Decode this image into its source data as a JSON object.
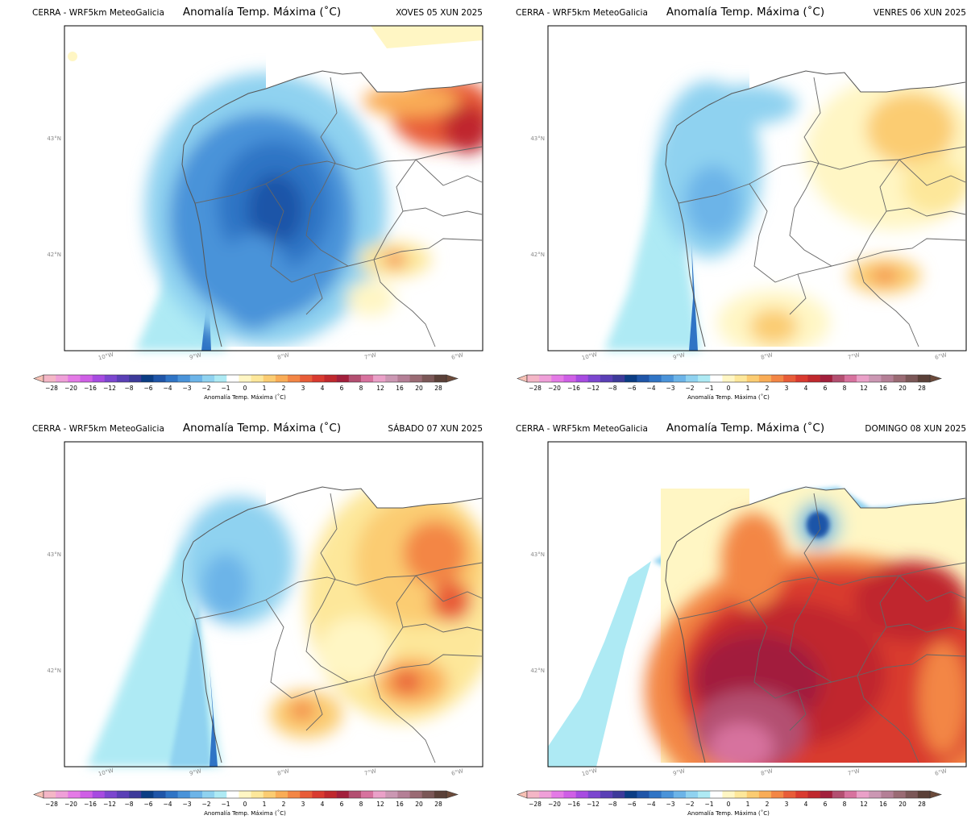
{
  "product_source": "CERRA - WRF5km MeteoGalicia",
  "variable_title": "Anomalía Temp. Máxima (˚C)",
  "colorbar_label": "Anomalía Temp. Máxima (˚C)",
  "axes": {
    "lon_ticks": [
      "10°W",
      "9°W",
      "8°W",
      "7°W",
      "6°W"
    ],
    "lat_ticks": [
      "43°N",
      "42°N"
    ]
  },
  "colorbar": {
    "tick_labels": [
      "−28",
      "−20",
      "−16",
      "−12",
      "−8",
      "−6",
      "−4",
      "−3",
      "−2",
      "−1",
      "0",
      "1",
      "2",
      "3",
      "4",
      "6",
      "8",
      "12",
      "16",
      "20",
      "28"
    ],
    "colors": [
      "#f4b6c6",
      "#ef9fd8",
      "#e47ae6",
      "#cf5fe6",
      "#a74be1",
      "#7c46cf",
      "#5a3fb6",
      "#3d3a9a",
      "#0b3d84",
      "#1f55a8",
      "#2f74c5",
      "#4a93d9",
      "#6cb4e8",
      "#8fd2f0",
      "#aeeaf4",
      "#ffffff",
      "#fff6c4",
      "#fde79a",
      "#fbcc72",
      "#f9ac56",
      "#f38645",
      "#e85c38",
      "#d93a2f",
      "#c0282d",
      "#a21f3c",
      "#b34f71",
      "#d7729e",
      "#eaa0c8",
      "#cb97b3",
      "#b47f96",
      "#9a6b74",
      "#7b5757",
      "#5a4038"
    ],
    "extend_min_color": "#f7c1b5",
    "extend_max_color": "#6b4a3a"
  },
  "panels": [
    {
      "date": "XOVES 05 XUN 2025"
    },
    {
      "date": "VENRES 06 XUN 2025"
    },
    {
      "date": "SÁBADO 07 XUN 2025"
    },
    {
      "date": "DOMINGO 08 XUN 2025"
    }
  ]
}
